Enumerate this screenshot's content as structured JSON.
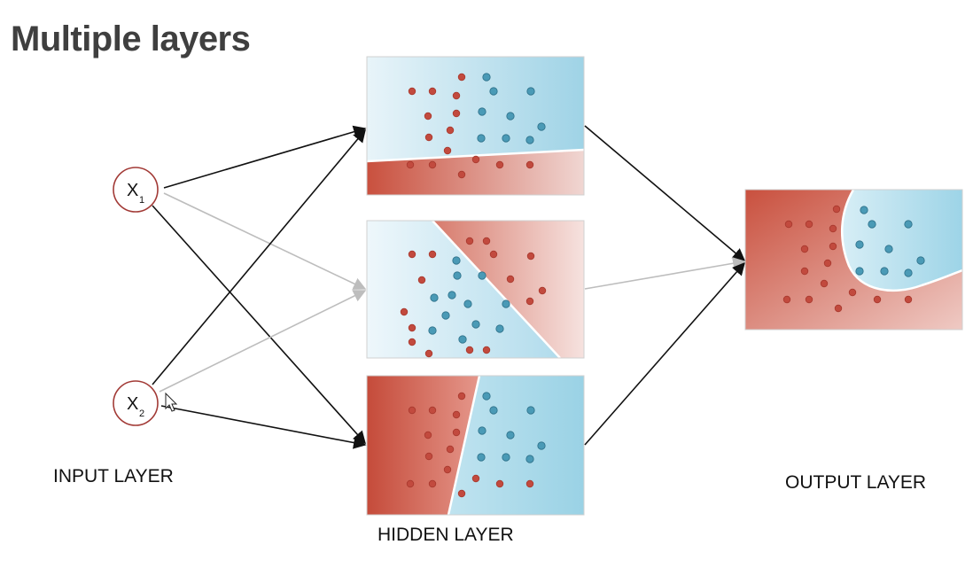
{
  "title": "Multiple layers",
  "labels": {
    "input_layer": "INPUT LAYER",
    "hidden_layer": "HIDDEN LAYER",
    "output_layer": "OUTPUT LAYER"
  },
  "nodes": {
    "x1": {
      "main": "X",
      "sub": "1"
    },
    "x2": {
      "main": "X",
      "sub": "2"
    }
  },
  "colors": {
    "red_point": "#c24a3e",
    "blue_point": "#4a9ab6",
    "red_region": "#cd5a48",
    "blue_region": "#9fd5e7",
    "node_border": "#a23a36",
    "strong_edge": "#111111",
    "faint_edge": "#bdbdbd"
  }
}
